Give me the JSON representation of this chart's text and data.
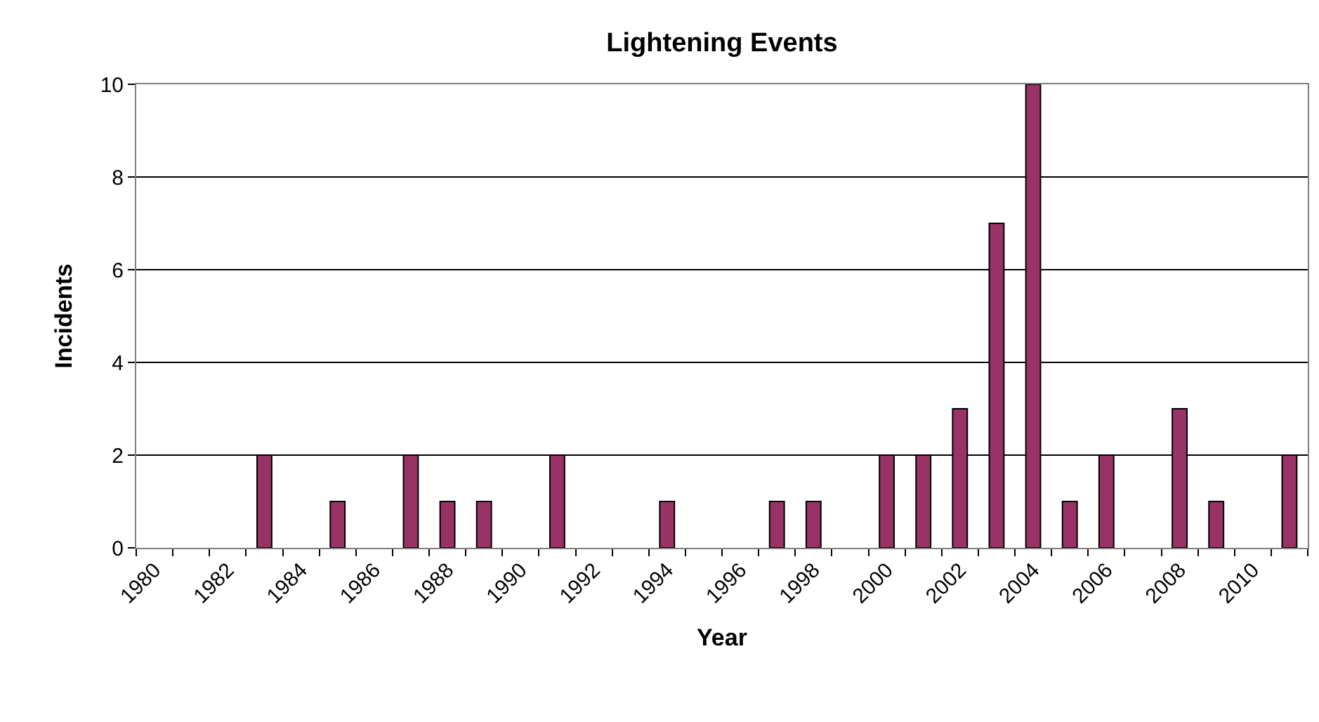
{
  "chart_data": {
    "type": "bar",
    "title": "Lightening Events",
    "xlabel": "Year",
    "ylabel": "Incidents",
    "categories": [
      "1980",
      null,
      "1982",
      null,
      "1984",
      null,
      "1986",
      null,
      "1988",
      null,
      "1990",
      null,
      "1992",
      null,
      "1994",
      null,
      "1996",
      null,
      "1998",
      null,
      "2000",
      null,
      "2002",
      null,
      "2004",
      null,
      "2006",
      null,
      "2008",
      null,
      "2010",
      null
    ],
    "values": [
      null,
      null,
      null,
      2,
      null,
      1,
      null,
      2,
      1,
      1,
      null,
      2,
      null,
      null,
      1,
      null,
      null,
      1,
      1,
      null,
      2,
      2,
      3,
      7,
      10,
      1,
      2,
      null,
      3,
      1,
      null,
      2
    ],
    "color": "#993366",
    "ylim": [
      0,
      10
    ],
    "yticks": [
      0,
      2,
      4,
      6,
      8,
      10
    ],
    "grid": "y"
  }
}
